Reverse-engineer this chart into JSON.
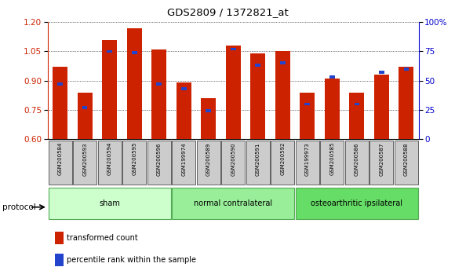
{
  "title": "GDS2809 / 1372821_at",
  "samples": [
    "GSM200584",
    "GSM200593",
    "GSM200594",
    "GSM200595",
    "GSM200596",
    "GSM199974",
    "GSM200589",
    "GSM200590",
    "GSM200591",
    "GSM200592",
    "GSM199973",
    "GSM200585",
    "GSM200586",
    "GSM200587",
    "GSM200588"
  ],
  "transformed_count": [
    0.97,
    0.84,
    1.11,
    1.17,
    1.06,
    0.89,
    0.81,
    1.08,
    1.04,
    1.05,
    0.84,
    0.91,
    0.84,
    0.93,
    0.97
  ],
  "percentile_rank": [
    47,
    27,
    75,
    74,
    47,
    43,
    24,
    77,
    63,
    65,
    30,
    53,
    30,
    57,
    60
  ],
  "ylim_left": [
    0.6,
    1.2
  ],
  "ylim_right": [
    0,
    100
  ],
  "yticks_left": [
    0.6,
    0.75,
    0.9,
    1.05,
    1.2
  ],
  "yticks_right": [
    0,
    25,
    50,
    75,
    100
  ],
  "groups": [
    {
      "label": "sham",
      "start": 0,
      "end": 4,
      "color": "#ccffcc"
    },
    {
      "label": "normal contralateral",
      "start": 5,
      "end": 9,
      "color": "#99ee99"
    },
    {
      "label": "osteoarthritic ipsilateral",
      "start": 10,
      "end": 14,
      "color": "#66dd66"
    }
  ],
  "bar_color_red": "#cc2200",
  "bar_color_blue": "#2244cc",
  "bar_width": 0.6,
  "tick_label_color_left": "#cc2200",
  "tick_label_color_right": "#0000cc",
  "protocol_label": "protocol",
  "legend_red": "transformed count",
  "legend_blue": "percentile rank within the sample",
  "group_border_color": "#55aa55",
  "xtick_box_color": "#cccccc"
}
